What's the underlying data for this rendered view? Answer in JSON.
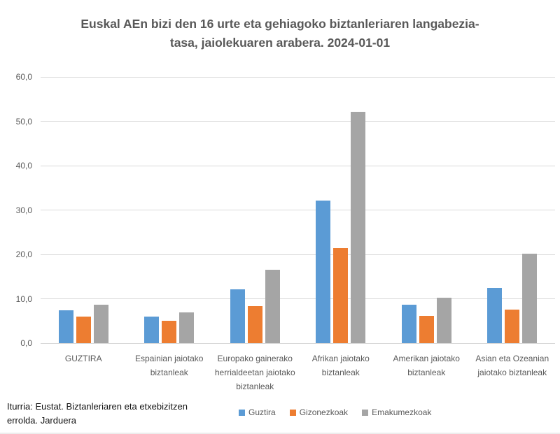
{
  "chart_data": {
    "type": "bar",
    "title": "Euskal AEn bizi den 16 urte eta gehiagoko biztanleriaren langabezia-tasa, jaiolekuaren arabera. 2024-01-01",
    "title_lines": [
      "Euskal AEn bizi den 16 urte eta gehiagoko biztanleriaren langabezia-",
      "tasa, jaiolekuaren arabera. 2024-01-01"
    ],
    "categories": [
      "GUZTIRA",
      "Espainian jaiotako biztanleak",
      "Europako gainerako herrialdeetan jaiotako biztanleak",
      "Afrikan jaiotako biztanleak",
      "Amerikan jaiotako biztanleak",
      "Asian eta Ozeanian jaiotako biztanleak"
    ],
    "series": [
      {
        "name": "Guztira",
        "color": "#5B9BD5",
        "values": [
          7.4,
          6.0,
          12.1,
          32.2,
          8.6,
          12.4
        ]
      },
      {
        "name": "Gizonezkoak",
        "color": "#ED7D31",
        "values": [
          6.0,
          5.0,
          8.3,
          21.4,
          6.1,
          7.6
        ]
      },
      {
        "name": "Emakumezkoak",
        "color": "#A5A5A5",
        "values": [
          8.7,
          6.9,
          16.5,
          52.2,
          10.3,
          20.1
        ]
      }
    ],
    "ylim": [
      0,
      60
    ],
    "y_ticks": [
      {
        "value": 0,
        "label": "0,0"
      },
      {
        "value": 10,
        "label": "10,0"
      },
      {
        "value": 20,
        "label": "20,0"
      },
      {
        "value": 30,
        "label": "30,0"
      },
      {
        "value": 40,
        "label": "40,0"
      },
      {
        "value": 50,
        "label": "50,0"
      },
      {
        "value": 60,
        "label": "60,0"
      }
    ],
    "grid": true,
    "legend_position": "bottom",
    "source": "Iturria: Eustat. Biztanleriaren eta etxebizitzen errolda. Jarduera",
    "colors": {
      "gridline": "#d9d9d9",
      "axis_text": "#595959",
      "title_text": "#595959"
    }
  }
}
